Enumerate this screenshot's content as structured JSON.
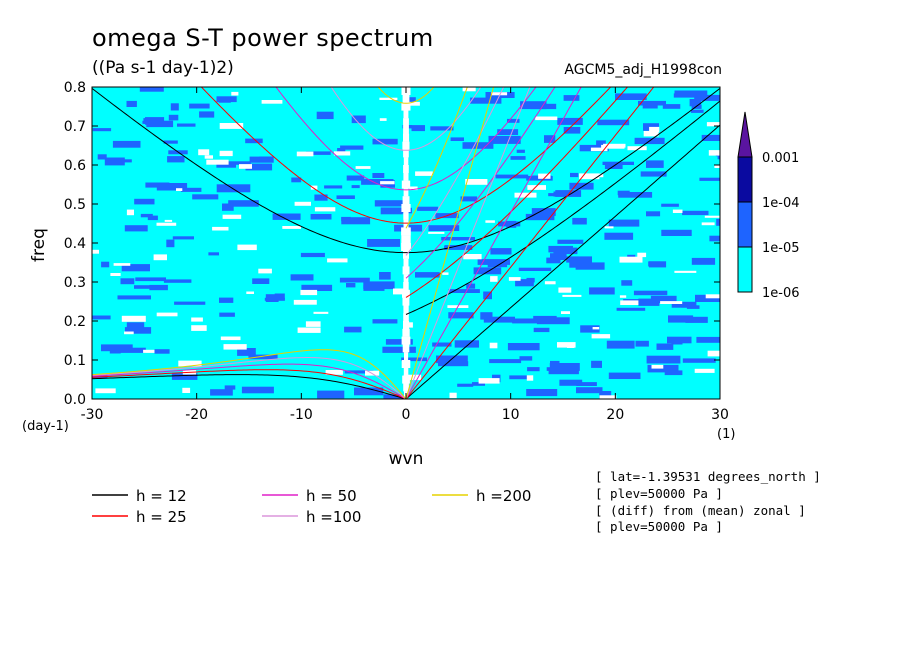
{
  "title": "omega S-T power spectrum",
  "units": "((Pa s-1 day-1)2)",
  "run_name": "AGCM5_adj_H1998con",
  "info_lines": [
    "[ lat=-1.39531 degrees_north ]",
    "[ plev=50000 Pa ]",
    "[ (diff) from (mean) zonal ]",
    "[ plev=50000 Pa ]"
  ],
  "chart_data": {
    "type": "heatmap",
    "xlabel": "wvn",
    "ylabel": "freq",
    "x_unit": "(1)",
    "y_unit": "(day-1)",
    "xlim": [
      -30,
      30
    ],
    "ylim": [
      0,
      0.8
    ],
    "x_ticks": [
      "-30",
      "-20",
      "-10",
      "0",
      "10",
      "20",
      "30"
    ],
    "x_tick_values": [
      -30,
      -20,
      -10,
      0,
      10,
      20,
      30
    ],
    "y_ticks": [
      "0.0",
      "0.1",
      "0.2",
      "0.3",
      "0.4",
      "0.5",
      "0.6",
      "0.7",
      "0.8"
    ],
    "y_tick_values": [
      0,
      0.1,
      0.2,
      0.3,
      0.4,
      0.5,
      0.6,
      0.7,
      0.8
    ],
    "colorbar": {
      "levels": [
        "1e-06",
        "1e-05",
        "1e-04",
        "0.001"
      ],
      "colors": [
        "#ffffff",
        "#00ffff",
        "#1e64ff",
        "#0a0aa0",
        "#5a14a0"
      ]
    },
    "dispersion_curves": [
      {
        "name": "h = 12",
        "h": 12,
        "color": "#000000"
      },
      {
        "name": "h = 25",
        "h": 25,
        "color": "#ff0000"
      },
      {
        "name": "h = 50",
        "h": 50,
        "color": "#e020c8"
      },
      {
        "name": "h =100",
        "h": 100,
        "color": "#dc96dc"
      },
      {
        "name": "h =200",
        "h": 200,
        "color": "#e6d200"
      }
    ]
  }
}
